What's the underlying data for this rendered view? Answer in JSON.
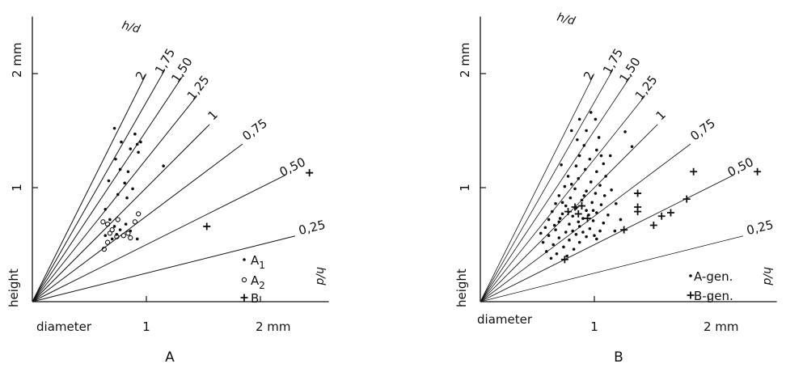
{
  "chart_data": [
    {
      "type": "scatter",
      "panel_label": "A",
      "xlabel": "diameter",
      "ylabel": "height",
      "xlim": [
        0,
        2.6
      ],
      "ylim": [
        0,
        2.5
      ],
      "x_ticks": [
        {
          "value": 1,
          "label": "1"
        },
        {
          "value": 2,
          "label": "2 mm"
        }
      ],
      "y_ticks": [
        {
          "value": 1,
          "label": "1"
        },
        {
          "value": 2,
          "label": "2 mm"
        }
      ],
      "ratio_title": "h/d",
      "ratio_axis_label": "h/d",
      "ratio_lines": [
        {
          "ratio": 2,
          "label": "2"
        },
        {
          "ratio": 1.75,
          "label": "1,75"
        },
        {
          "ratio": 1.5,
          "label": "1,50"
        },
        {
          "ratio": 1.25,
          "label": "1,25"
        },
        {
          "ratio": 1,
          "label": "1"
        },
        {
          "ratio": 0.75,
          "label": "0,75"
        },
        {
          "ratio": 0.5,
          "label": "0,50"
        },
        {
          "ratio": 0.25,
          "label": "0,25"
        }
      ],
      "legend": [
        {
          "symbol": "dot",
          "label": "A1"
        },
        {
          "symbol": "circle",
          "label": "A2"
        },
        {
          "symbol": "cross",
          "label": "B"
        }
      ],
      "series": [
        {
          "symbol": "dot",
          "points": [
            [
              0.72,
              1.52
            ],
            [
              0.78,
              1.4
            ],
            [
              0.9,
              1.47
            ],
            [
              0.92,
              1.38
            ],
            [
              0.95,
              1.4
            ],
            [
              0.86,
              1.34
            ],
            [
              0.93,
              1.31
            ],
            [
              0.73,
              1.25
            ],
            [
              0.77,
              1.16
            ],
            [
              0.84,
              1.14
            ],
            [
              1.15,
              1.19
            ],
            [
              0.67,
              1.06
            ],
            [
              0.81,
              1.04
            ],
            [
              0.88,
              0.99
            ],
            [
              0.75,
              0.94
            ],
            [
              0.83,
              0.91
            ],
            [
              0.64,
              0.81
            ],
            [
              0.68,
              0.72
            ],
            [
              0.72,
              0.66
            ],
            [
              0.77,
              0.63
            ],
            [
              0.82,
              0.68
            ],
            [
              0.86,
              0.62
            ],
            [
              0.92,
              0.55
            ],
            [
              0.74,
              0.59
            ],
            [
              0.7,
              0.55
            ],
            [
              0.64,
              0.58
            ]
          ]
        },
        {
          "symbol": "circle",
          "points": [
            [
              0.62,
              0.7
            ],
            [
              0.66,
              0.68
            ],
            [
              0.7,
              0.63
            ],
            [
              0.74,
              0.57
            ],
            [
              0.8,
              0.58
            ],
            [
              0.84,
              0.6
            ],
            [
              0.9,
              0.7
            ],
            [
              0.93,
              0.77
            ],
            [
              0.63,
              0.46
            ],
            [
              0.66,
              0.52
            ],
            [
              0.68,
              0.6
            ],
            [
              0.75,
              0.72
            ],
            [
              0.86,
              0.56
            ]
          ]
        },
        {
          "symbol": "cross",
          "points": [
            [
              1.53,
              0.66
            ],
            [
              2.43,
              1.13
            ]
          ]
        }
      ]
    },
    {
      "type": "scatter",
      "panel_label": "B",
      "xlabel": "diameter",
      "ylabel": "height",
      "xlim": [
        0,
        2.6
      ],
      "ylim": [
        0,
        2.5
      ],
      "x_ticks": [
        {
          "value": 1,
          "label": "1"
        },
        {
          "value": 2,
          "label": "2 mm"
        }
      ],
      "y_ticks": [
        {
          "value": 1,
          "label": "1"
        },
        {
          "value": 2,
          "label": "2 mm"
        }
      ],
      "ratio_title": "h/d",
      "ratio_axis_label": "h/d",
      "ratio_lines": [
        {
          "ratio": 2,
          "label": "2"
        },
        {
          "ratio": 1.75,
          "label": "1,75"
        },
        {
          "ratio": 1.5,
          "label": "1,50"
        },
        {
          "ratio": 1.25,
          "label": "1,25"
        },
        {
          "ratio": 1,
          "label": "1"
        },
        {
          "ratio": 0.75,
          "label": "0,75"
        },
        {
          "ratio": 0.5,
          "label": "0,50"
        },
        {
          "ratio": 0.25,
          "label": "0,25"
        }
      ],
      "legend": [
        {
          "symbol": "dot",
          "label": "A-gen."
        },
        {
          "symbol": "cross",
          "label": "B-gen."
        }
      ],
      "series": [
        {
          "symbol": "dot",
          "points": [
            [
              0.8,
              1.5
            ],
            [
              0.87,
              1.6
            ],
            [
              0.97,
              1.66
            ],
            [
              1.01,
              1.6
            ],
            [
              0.93,
              1.5
            ],
            [
              1.04,
              1.44
            ],
            [
              0.85,
              1.42
            ],
            [
              0.91,
              1.37
            ],
            [
              1.02,
              1.33
            ],
            [
              1.06,
              1.28
            ],
            [
              0.87,
              1.28
            ],
            [
              0.96,
              1.25
            ],
            [
              1.08,
              1.21
            ],
            [
              0.84,
              1.19
            ],
            [
              0.92,
              1.16
            ],
            [
              1.02,
              1.14
            ],
            [
              1.1,
              1.1
            ],
            [
              0.77,
              1.1
            ],
            [
              0.86,
              1.08
            ],
            [
              0.97,
              1.05
            ],
            [
              1.05,
              1.02
            ],
            [
              0.74,
              1.01
            ],
            [
              0.83,
              0.99
            ],
            [
              0.93,
              0.97
            ],
            [
              1.01,
              0.95
            ],
            [
              1.09,
              0.93
            ],
            [
              0.69,
              0.93
            ],
            [
              0.79,
              0.91
            ],
            [
              0.89,
              0.89
            ],
            [
              0.98,
              0.87
            ],
            [
              1.06,
              0.85
            ],
            [
              0.66,
              0.86
            ],
            [
              0.75,
              0.84
            ],
            [
              0.84,
              0.82
            ],
            [
              0.93,
              0.8
            ],
            [
              1.02,
              0.78
            ],
            [
              1.12,
              0.76
            ],
            [
              0.63,
              0.79
            ],
            [
              0.72,
              0.77
            ],
            [
              0.81,
              0.75
            ],
            [
              0.9,
              0.73
            ],
            [
              0.99,
              0.71
            ],
            [
              1.08,
              0.69
            ],
            [
              0.6,
              0.72
            ],
            [
              0.69,
              0.7
            ],
            [
              0.78,
              0.68
            ],
            [
              0.87,
              0.66
            ],
            [
              0.96,
              0.64
            ],
            [
              0.57,
              0.65
            ],
            [
              0.66,
              0.63
            ],
            [
              0.75,
              0.61
            ],
            [
              0.84,
              0.59
            ],
            [
              0.93,
              0.57
            ],
            [
              1.02,
              0.55
            ],
            [
              0.6,
              0.58
            ],
            [
              0.69,
              0.56
            ],
            [
              0.78,
              0.54
            ],
            [
              0.87,
              0.52
            ],
            [
              0.55,
              0.52
            ],
            [
              0.64,
              0.5
            ],
            [
              0.73,
              0.48
            ],
            [
              0.82,
              0.46
            ],
            [
              0.58,
              0.44
            ],
            [
              0.67,
              0.42
            ],
            [
              0.76,
              0.4
            ],
            [
              0.62,
              0.38
            ],
            [
              1.15,
              0.98
            ],
            [
              1.19,
              0.86
            ],
            [
              1.23,
              0.72
            ],
            [
              1.18,
              0.62
            ],
            [
              1.14,
              1.28
            ],
            [
              1.27,
              1.49
            ],
            [
              1.33,
              1.36
            ],
            [
              0.71,
              1.2
            ],
            [
              0.8,
              1.03
            ],
            [
              0.72,
              0.87
            ],
            [
              0.91,
              0.93
            ],
            [
              0.99,
              0.8
            ],
            [
              0.7,
              0.73
            ],
            [
              0.86,
              0.7
            ],
            [
              0.95,
              0.76
            ],
            [
              1.05,
              0.62
            ],
            [
              0.65,
              0.67
            ],
            [
              0.81,
              0.62
            ],
            [
              0.9,
              0.61
            ],
            [
              1.0,
              0.58
            ],
            [
              0.53,
              0.6
            ]
          ]
        },
        {
          "symbol": "cross",
          "points": [
            [
              0.83,
              0.83
            ],
            [
              0.89,
              0.84
            ],
            [
              0.77,
              0.79
            ],
            [
              0.86,
              0.77
            ],
            [
              0.94,
              0.73
            ],
            [
              1.38,
              0.95
            ],
            [
              1.38,
              0.83
            ],
            [
              1.38,
              0.79
            ],
            [
              1.59,
              0.75
            ],
            [
              1.67,
              0.78
            ],
            [
              1.81,
              0.9
            ],
            [
              1.87,
              1.14
            ],
            [
              1.52,
              0.67
            ],
            [
              1.26,
              0.63
            ],
            [
              0.74,
              0.37
            ],
            [
              2.43,
              1.14
            ]
          ]
        }
      ]
    }
  ]
}
